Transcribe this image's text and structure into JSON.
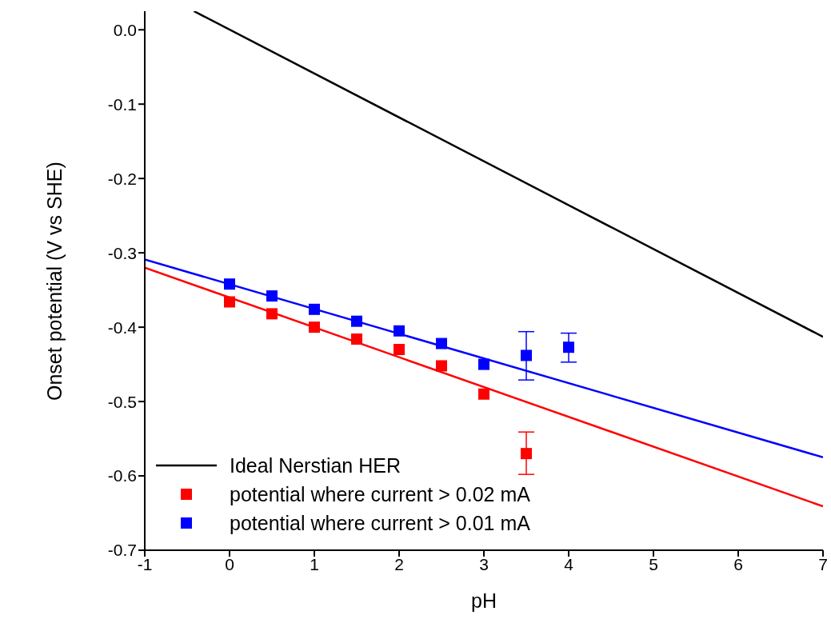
{
  "chart_data": {
    "type": "scatter",
    "xlabel": "pH",
    "ylabel": "Onset potential (V vs SHE)",
    "xlim": [
      -1,
      7
    ],
    "xticks": [
      -1,
      0,
      1,
      2,
      3,
      4,
      5,
      6,
      7
    ],
    "ylim": [
      -0.7,
      0.025
    ],
    "yticks": [
      -0.7,
      -0.6,
      -0.5,
      -0.4,
      -0.3,
      -0.2,
      -0.1,
      {
        "value": 0,
        "label": "0.0"
      }
    ],
    "legend": "bottom left",
    "series": [
      {
        "name": "Ideal Nerstian HER",
        "type": "line",
        "color": "#000000",
        "line_style": "solid",
        "x": [
          -0.42,
          7
        ],
        "values": [
          0.025,
          -0.413
        ]
      },
      {
        "name": "potential where current > 0.02 mA",
        "marker": "square",
        "color": "#ff0000",
        "x": [
          0,
          0.5,
          1,
          1.5,
          2,
          2.5,
          3,
          3.5
        ],
        "values": [
          -0.366,
          -0.382,
          -0.4,
          -0.416,
          -0.43,
          -0.452,
          -0.49,
          -0.57
        ],
        "errors": [
          null,
          null,
          null,
          null,
          null,
          null,
          null,
          [
            -0.598,
            -0.541
          ]
        ]
      },
      {
        "name": "potential where current > 0.01 mA",
        "marker": "square",
        "color": "#0000ff",
        "x": [
          0,
          0.5,
          1,
          1.5,
          2,
          2.5,
          3,
          3.5,
          4
        ],
        "values": [
          -0.342,
          -0.358,
          -0.376,
          -0.392,
          -0.405,
          -0.422,
          -0.45,
          -0.438,
          -0.427
        ],
        "errors": [
          null,
          null,
          null,
          null,
          null,
          null,
          null,
          [
            -0.471,
            -0.406
          ],
          [
            -0.447,
            -0.408
          ]
        ]
      },
      {
        "type": "line",
        "color": "#ff0000",
        "line_style": "solid",
        "x": [
          -1,
          7
        ],
        "values": [
          -0.32,
          -0.641
        ]
      },
      {
        "type": "line",
        "color": "#0000ff",
        "line_style": "solid",
        "x": [
          -1,
          7
        ],
        "values": [
          -0.309,
          -0.575
        ]
      }
    ]
  }
}
